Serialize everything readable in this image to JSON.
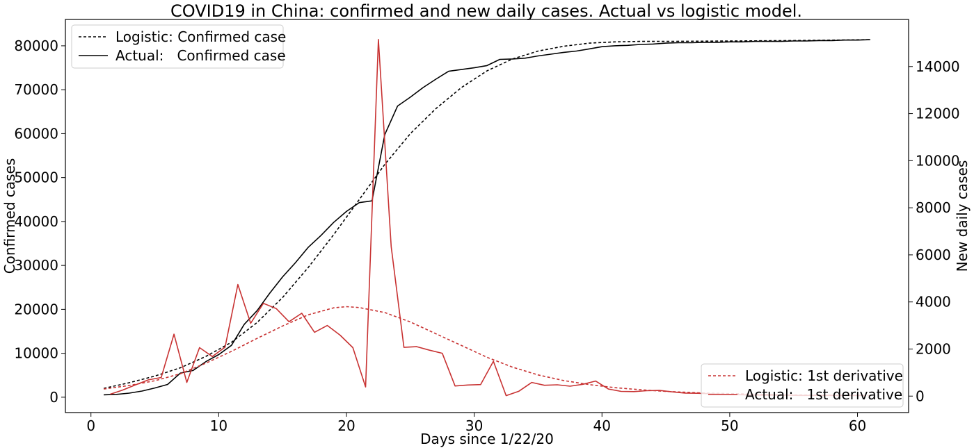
{
  "chart_data": {
    "type": "line",
    "title": "COVID19 in China: confirmed and new daily cases. Actual vs logistic model.",
    "xlabel": "Days since 1/22/20",
    "ylabel_left": "Confirmed cases",
    "ylabel_right": "New daily cases",
    "xlim": [
      -2,
      64
    ],
    "ylim_left": [
      -3500,
      86000
    ],
    "ylim_right": [
      -700,
      16000
    ],
    "xticks": [
      0,
      10,
      20,
      30,
      40,
      50,
      60
    ],
    "yticks_left": [
      0,
      10000,
      20000,
      30000,
      40000,
      50000,
      60000,
      70000,
      80000
    ],
    "yticks_right": [
      0,
      2000,
      4000,
      6000,
      8000,
      10000,
      12000,
      14000
    ],
    "grid": false,
    "legend_left": {
      "placement": "top-left",
      "entries": [
        {
          "label": "Logistic: Confirmed case",
          "style": "dashed",
          "color": "#000000"
        },
        {
          "label": "Actual:   Confirmed case",
          "style": "solid",
          "color": "#000000"
        }
      ]
    },
    "legend_right": {
      "placement": "bottom-right",
      "entries": [
        {
          "label": "Logistic: 1st derivative",
          "style": "dashed",
          "color": "#c83232"
        },
        {
          "label": "Actual:   1st derivative",
          "style": "solid",
          "color": "#c83232"
        }
      ]
    },
    "series": [
      {
        "name": "Logistic: Confirmed case",
        "axis": "left",
        "style": "dashed",
        "color": "#000000",
        "x": [
          1,
          3,
          5,
          7,
          9,
          11,
          13,
          15,
          17,
          19,
          20,
          21,
          23,
          25,
          27,
          29,
          31,
          33,
          35,
          37,
          39,
          41,
          43,
          45,
          50,
          55,
          61
        ],
        "y": [
          2000,
          3300,
          4800,
          6700,
          9300,
          12500,
          17000,
          22700,
          29500,
          37000,
          41000,
          45000,
          53000,
          60000,
          65700,
          70500,
          74300,
          77000,
          78800,
          79900,
          80600,
          80900,
          81000,
          81000,
          81100,
          81200,
          81400
        ]
      },
      {
        "name": "Actual:   Confirmed case",
        "axis": "left",
        "style": "solid",
        "color": "#000000",
        "x": [
          1,
          2,
          3,
          4,
          5,
          6,
          7,
          8,
          9,
          10,
          11,
          12,
          13,
          14,
          15,
          16,
          17,
          18,
          19,
          20,
          21,
          22,
          23,
          24,
          25,
          26,
          27,
          28,
          29,
          30,
          31,
          32,
          33,
          34,
          35,
          36,
          37,
          38,
          39,
          40,
          41,
          42,
          43,
          44,
          45,
          46,
          47,
          48,
          49,
          50,
          51,
          52,
          53,
          54,
          55,
          56,
          57,
          58,
          59,
          60,
          61
        ],
        "y": [
          550,
          640,
          920,
          1400,
          2100,
          2900,
          5500,
          6100,
          8100,
          9700,
          11800,
          16600,
          19700,
          23700,
          27400,
          30600,
          34100,
          36800,
          39800,
          42300,
          44300,
          44700,
          59800,
          66300,
          68300,
          70500,
          72400,
          74200,
          74600,
          75000,
          75500,
          76900,
          77000,
          77200,
          77700,
          78100,
          78500,
          78800,
          79300,
          79800,
          80000,
          80100,
          80300,
          80400,
          80600,
          80700,
          80700,
          80800,
          80800,
          80900,
          80900,
          81000,
          81000,
          81000,
          81100,
          81100,
          81200,
          81200,
          81300,
          81300,
          81400
        ]
      },
      {
        "name": "Logistic: 1st derivative",
        "axis": "right",
        "style": "dashed",
        "color": "#c83232",
        "x": [
          1,
          3,
          5,
          7,
          9,
          11,
          13,
          15,
          17,
          19,
          20,
          21,
          23,
          25,
          27,
          29,
          31,
          33,
          35,
          37,
          39,
          41,
          43,
          45,
          48,
          51,
          55,
          61
        ],
        "y": [
          300,
          450,
          650,
          950,
          1400,
          1900,
          2450,
          2980,
          3450,
          3750,
          3800,
          3760,
          3550,
          3150,
          2650,
          2150,
          1650,
          1230,
          900,
          660,
          490,
          360,
          270,
          200,
          130,
          90,
          50,
          20
        ]
      },
      {
        "name": "Actual:   1st derivative",
        "axis": "right",
        "style": "solid",
        "color": "#c83232",
        "x": [
          1.5,
          2.5,
          3.5,
          4.5,
          5.5,
          6.5,
          7.5,
          8.5,
          9.5,
          10.5,
          11.5,
          12.5,
          13.5,
          14.5,
          15.5,
          16.5,
          17.5,
          18.5,
          19.5,
          20.5,
          21.5,
          22.5,
          23.5,
          24.5,
          25.5,
          26.5,
          27.5,
          28.5,
          29.5,
          30.5,
          31.5,
          32.5,
          33.5,
          34.5,
          35.5,
          36.5,
          37.5,
          38.5,
          39.5,
          40.5,
          41.5,
          42.5,
          43.5,
          44.5,
          45.5,
          46.5,
          47.5,
          48.5,
          49.5,
          50.5,
          51.5,
          52.5,
          53.5,
          54.5,
          55.5,
          56.5,
          57.5,
          58.5,
          59.5,
          60.5
        ],
        "y": [
          80,
          260,
          480,
          690,
          790,
          2630,
          580,
          2060,
          1680,
          2080,
          4740,
          3090,
          3940,
          3720,
          3160,
          3520,
          2710,
          3000,
          2590,
          2060,
          390,
          15150,
          6350,
          2070,
          2100,
          1950,
          1820,
          430,
          470,
          490,
          1480,
          20,
          210,
          580,
          460,
          480,
          420,
          500,
          640,
          300,
          200,
          190,
          230,
          240,
          180,
          130,
          120,
          100,
          80,
          60,
          50,
          40,
          40,
          40,
          30,
          30,
          30,
          30,
          30,
          30
        ]
      }
    ]
  }
}
